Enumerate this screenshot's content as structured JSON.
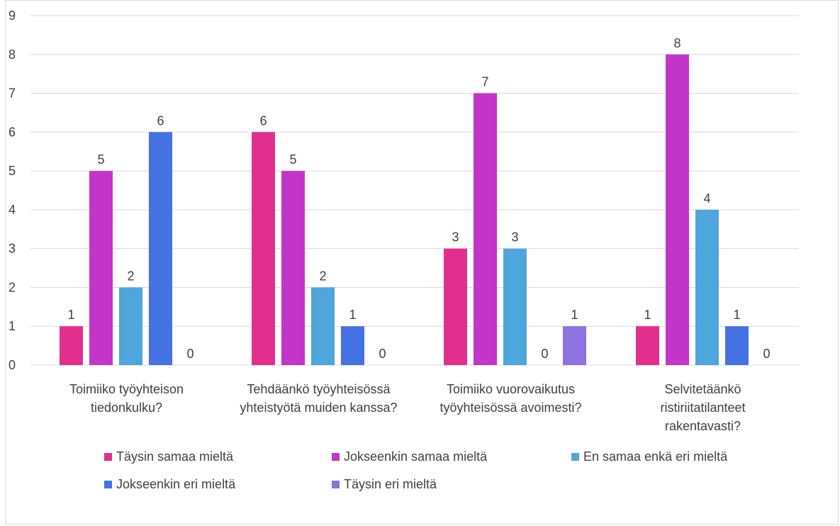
{
  "chart_data": {
    "type": "bar",
    "categories": [
      [
        "Toimiiko työyhteison",
        "tiedonkulku?"
      ],
      [
        "Tehdäänkö työyhteisössä",
        "yhteistyötä muiden kanssa?"
      ],
      [
        "Toimiiko vuorovaikutus",
        "työyhteisössä avoimesti?"
      ],
      [
        "Selvitetäänkö",
        "ristiriitatilanteet",
        "rakentavasti?"
      ]
    ],
    "series": [
      {
        "name": "Täysin samaa mieltä",
        "color": "#e22f8e",
        "values": [
          1,
          6,
          3,
          1
        ]
      },
      {
        "name": "Jokseenkin samaa mieltä",
        "color": "#c335c9",
        "values": [
          5,
          5,
          7,
          8
        ]
      },
      {
        "name": "En samaa enkä eri mieltä",
        "color": "#4ea6dc",
        "values": [
          2,
          2,
          3,
          4
        ]
      },
      {
        "name": "Jokseenkin eri mieltä",
        "color": "#4472e2",
        "values": [
          6,
          1,
          0,
          1
        ]
      },
      {
        "name": "Täysin eri mieltä",
        "color": "#8e72e0",
        "values": [
          0,
          0,
          1,
          0
        ]
      }
    ],
    "ylim": [
      0,
      9
    ],
    "yticks": [
      "0",
      "1",
      "2",
      "3",
      "4",
      "5",
      "6",
      "7",
      "8",
      "9"
    ],
    "grid": true,
    "legend_position": "bottom",
    "title": "",
    "xlabel": "",
    "ylabel": ""
  }
}
